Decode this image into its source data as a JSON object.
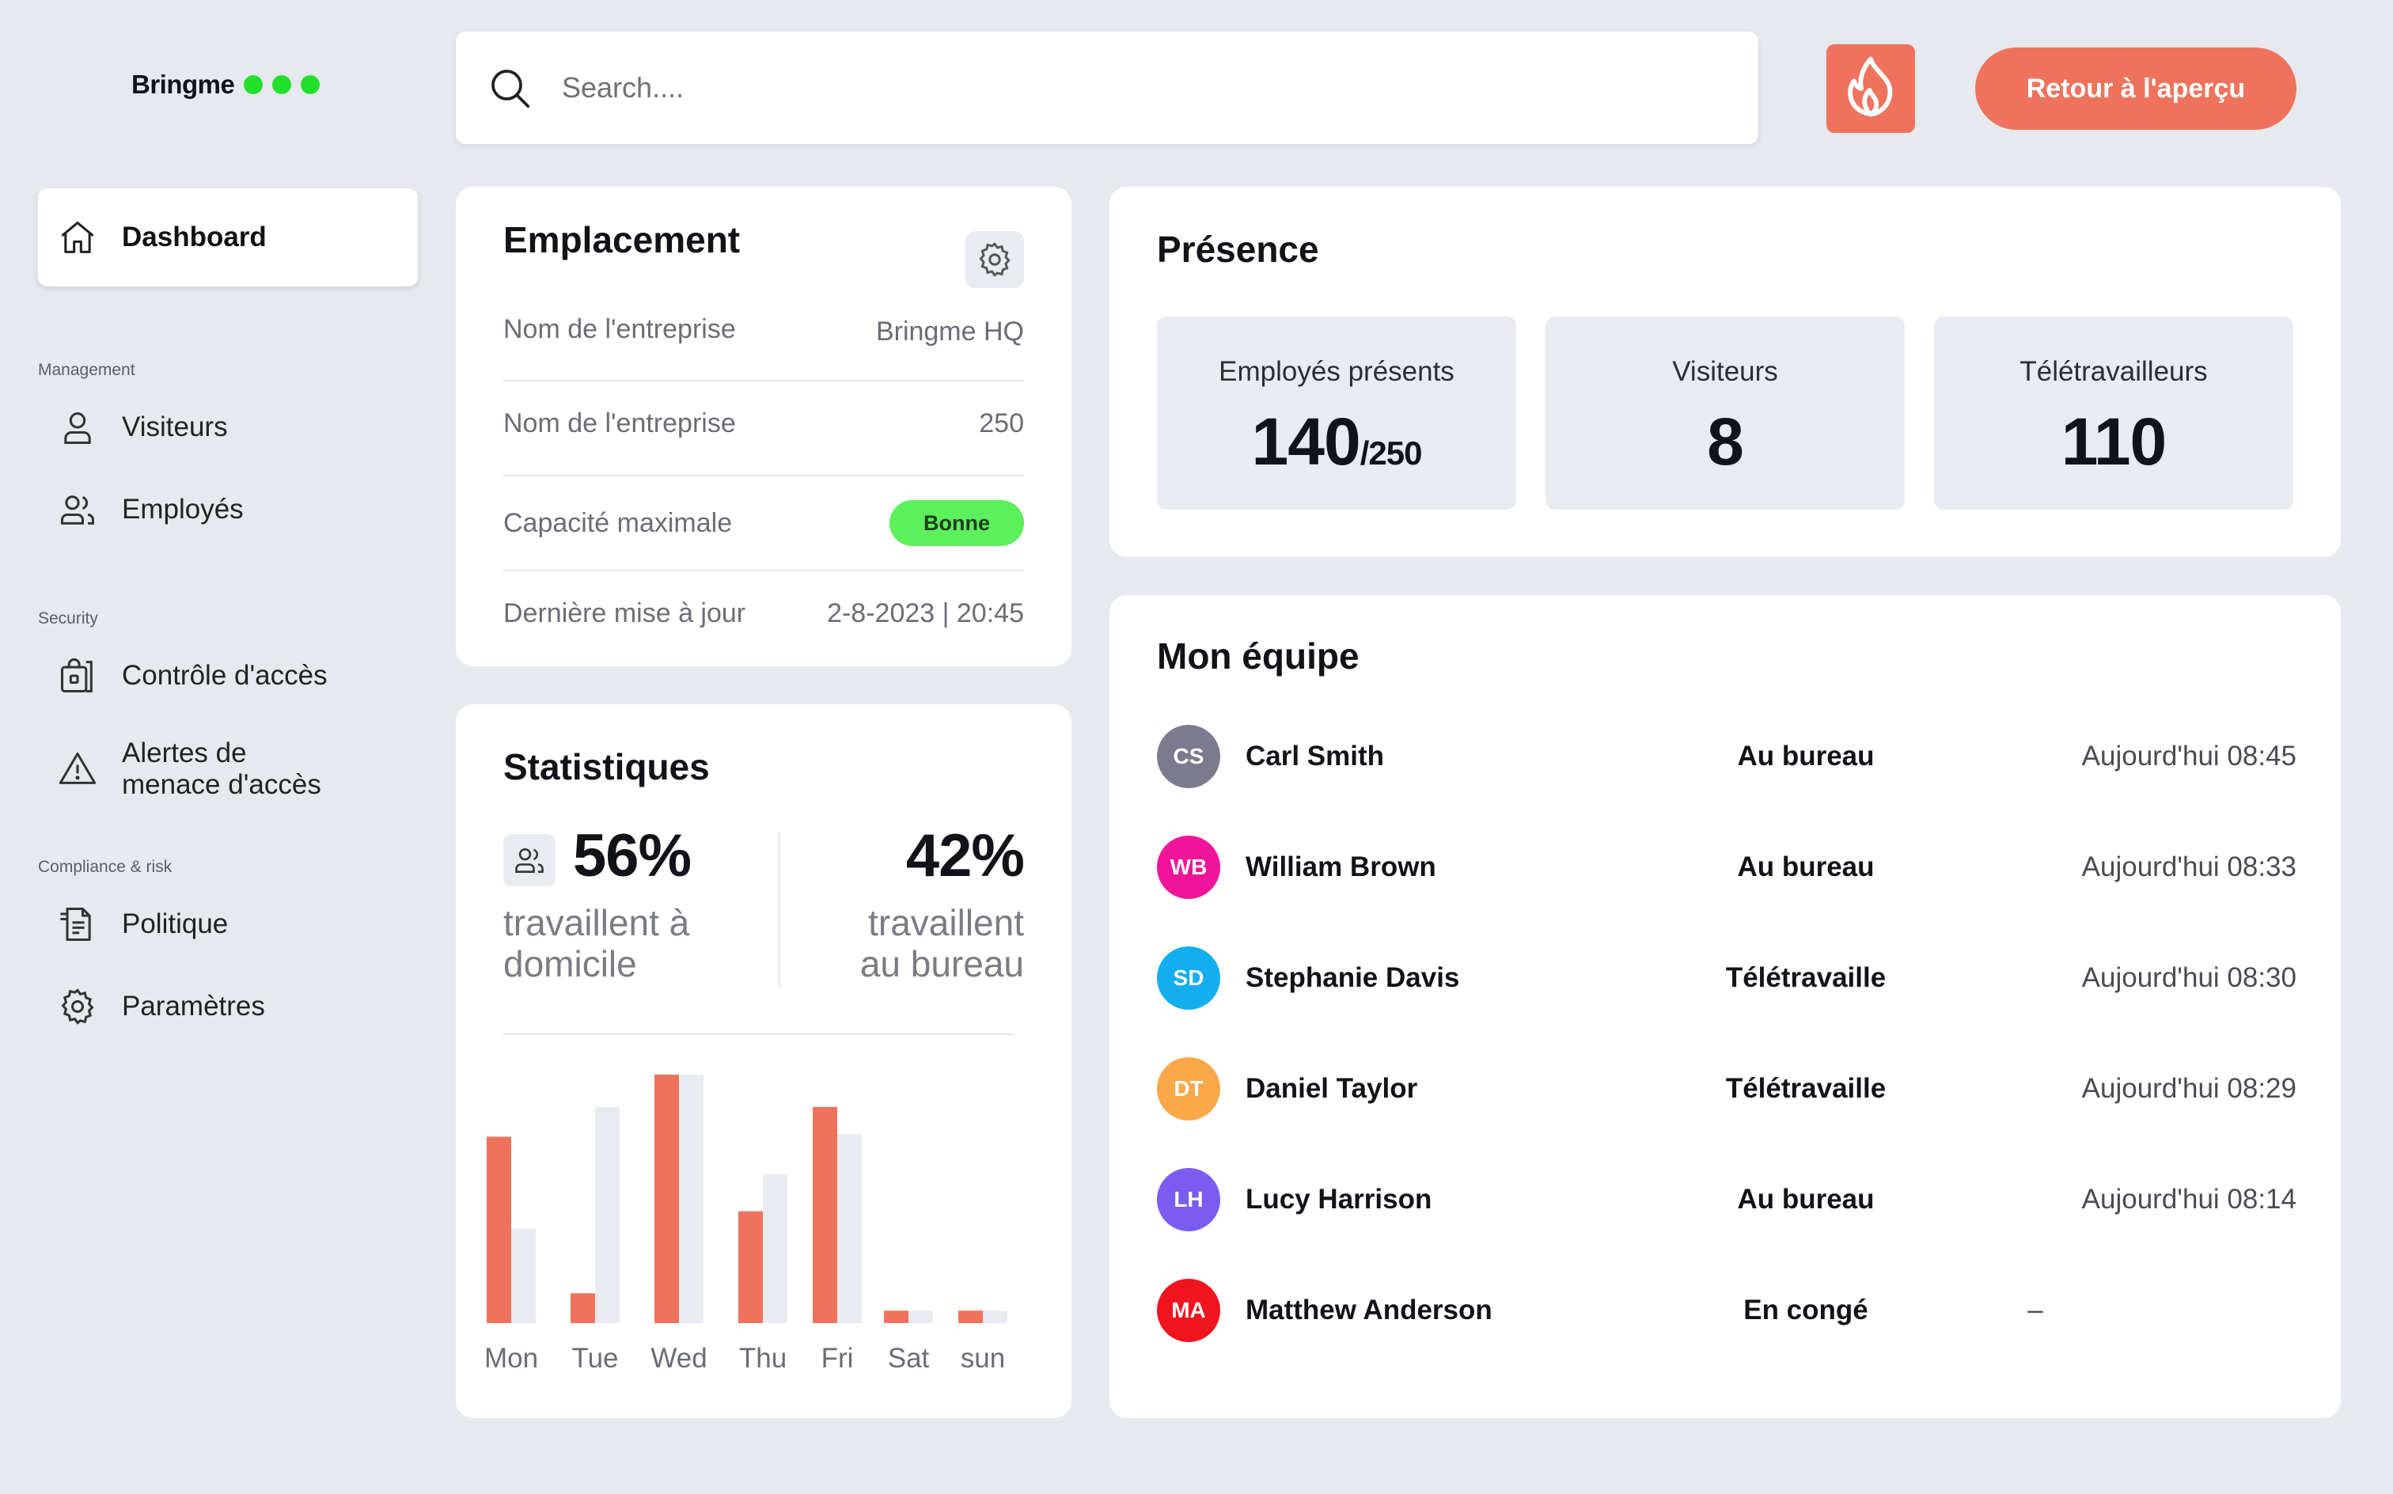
{
  "brand": {
    "name": "Bringme",
    "dot_color": "#22e02a"
  },
  "search": {
    "placeholder": "Search...."
  },
  "header": {
    "back_label": "Retour à l'aperçu",
    "accent": "#ef735c"
  },
  "sidebar": {
    "dashboard": {
      "label": "Dashboard",
      "icon": "home-icon"
    },
    "sections": [
      {
        "label": "Management",
        "items": [
          {
            "label": "Visiteurs",
            "icon": "user-icon"
          },
          {
            "label": "Employés",
            "icon": "users-icon"
          }
        ]
      },
      {
        "label": "Security",
        "items": [
          {
            "label": "Contrôle d'accès",
            "icon": "lock-door-icon"
          },
          {
            "label_line1": "Alertes de",
            "label_line2": "menace d'accès",
            "icon": "warning-icon"
          }
        ]
      },
      {
        "label": "Compliance & risk",
        "items": [
          {
            "label": "Politique",
            "icon": "policy-icon"
          },
          {
            "label": "Paramètres",
            "icon": "gear-icon"
          }
        ]
      }
    ]
  },
  "emplacement": {
    "title": "Emplacement",
    "rows": [
      {
        "label": "Nom de l'entreprise",
        "value": "Bringme HQ"
      },
      {
        "label": "Nom de l'entreprise",
        "value": "250"
      },
      {
        "label": "Capacité maximale",
        "value": "Bonne"
      },
      {
        "label": "Dernière mise à jour",
        "value": "2-8-2023 | 20:45"
      }
    ]
  },
  "statistiques": {
    "title": "Statistiques",
    "home_pct": "56%",
    "home_line1": "travaillent à",
    "home_line2": "domicile",
    "office_pct": "42%",
    "office_line1": "travaillent",
    "office_line2": "au bureau"
  },
  "chart_data": {
    "type": "bar",
    "categories": [
      "Mon",
      "Tue",
      "Wed",
      "Thu",
      "Fri",
      "Sat",
      "sun"
    ],
    "series": [
      {
        "values": [
          75,
          12,
          100,
          45,
          87,
          5,
          5
        ],
        "color": "#ef735c"
      },
      {
        "values": [
          38,
          87,
          100,
          60,
          76,
          5,
          5
        ],
        "color": "#e8ebef"
      }
    ],
    "ylim": [
      0,
      100
    ]
  },
  "presence": {
    "title": "Présence",
    "tiles": [
      {
        "label": "Employés présents",
        "value": "140",
        "sub": "/250"
      },
      {
        "label": "Visiteurs",
        "value": "8",
        "sub": ""
      },
      {
        "label": "Télétravailleurs",
        "value": "110",
        "sub": ""
      }
    ]
  },
  "team": {
    "title": "Mon équipe",
    "members": [
      {
        "initials": "CS",
        "name": "Carl Smith",
        "status": "Au bureau",
        "time": "Aujourd'hui 08:45",
        "color": "#7c7a8e"
      },
      {
        "initials": "WB",
        "name": "William Brown",
        "status": "Au bureau",
        "time": "Aujourd'hui 08:33",
        "color": "#f0149a"
      },
      {
        "initials": "SD",
        "name": "Stephanie Davis",
        "status": "Télétravaille",
        "time": "Aujourd'hui 08:30",
        "color": "#12aef0"
      },
      {
        "initials": "DT",
        "name": "Daniel Taylor",
        "status": "Télétravaille",
        "time": "Aujourd'hui 08:29",
        "color": "#fba84a"
      },
      {
        "initials": "LH",
        "name": "Lucy Harrison",
        "status": "Au bureau",
        "time": "Aujourd'hui 08:14",
        "color": "#7a5cf0"
      },
      {
        "initials": "MA",
        "name": "Matthew Anderson",
        "status": "En congé",
        "time": "–",
        "color": "#f0141e"
      }
    ]
  }
}
